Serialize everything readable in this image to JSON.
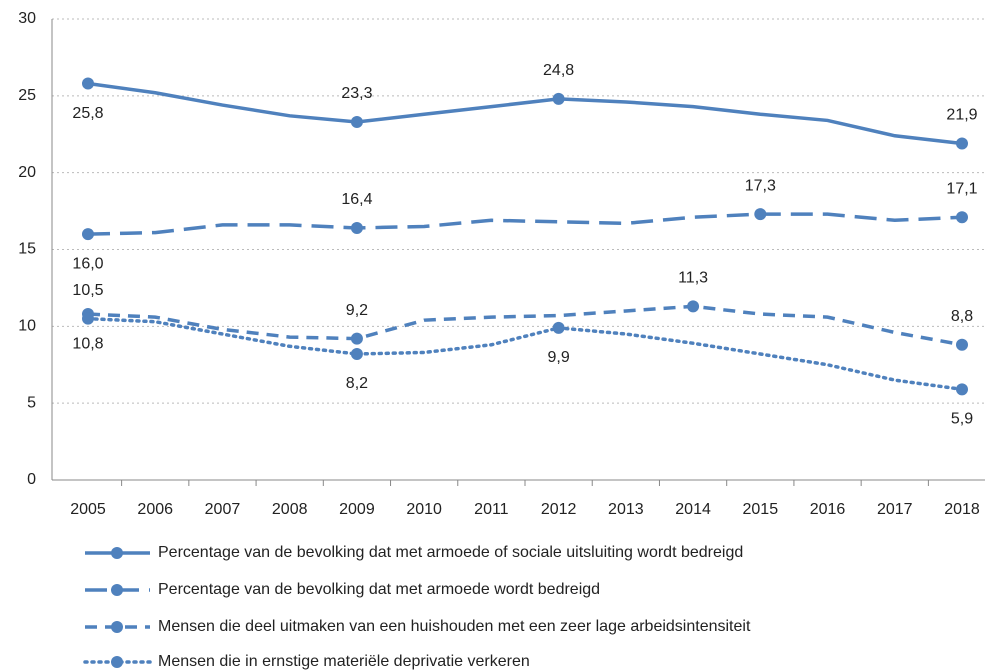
{
  "chart_data": {
    "type": "line",
    "categories": [
      "2005",
      "2006",
      "2007",
      "2008",
      "2009",
      "2010",
      "2011",
      "2012",
      "2013",
      "2014",
      "2015",
      "2016",
      "2017",
      "2018"
    ],
    "ylim": [
      0,
      30
    ],
    "yticks": [
      0,
      5,
      10,
      15,
      20,
      25,
      30
    ],
    "grid": true,
    "series": [
      {
        "name": "Percentage van de bevolking dat met armoede of sociale uitsluiting wordt bedreigd",
        "color": "#4f81bd",
        "dash": "solid",
        "values": [
          25.8,
          25.2,
          24.4,
          23.7,
          23.3,
          23.8,
          24.3,
          24.8,
          24.6,
          24.3,
          23.8,
          23.4,
          22.4,
          21.9
        ],
        "value_labels": [
          "25,8",
          null,
          null,
          null,
          "23,3",
          null,
          null,
          "24,8",
          null,
          null,
          null,
          null,
          null,
          "21,9"
        ]
      },
      {
        "name": "Percentage van de bevolking dat met armoede wordt bedreigd",
        "color": "#4f81bd",
        "dash": "long",
        "values": [
          16.0,
          16.1,
          16.6,
          16.6,
          16.4,
          16.5,
          16.9,
          16.8,
          16.7,
          17.1,
          17.3,
          17.3,
          16.9,
          17.1
        ],
        "value_labels": [
          "16,0",
          null,
          null,
          null,
          "16,4",
          null,
          null,
          null,
          null,
          null,
          "17,3",
          null,
          null,
          "17,1"
        ]
      },
      {
        "name": "Mensen die deel uitmaken van een huishouden met een zeer lage arbeidsintensiteit",
        "color": "#4f81bd",
        "dash": "medium",
        "values": [
          10.8,
          10.6,
          9.8,
          9.3,
          9.2,
          10.4,
          10.6,
          10.7,
          11.0,
          11.3,
          10.8,
          10.6,
          9.6,
          8.8
        ],
        "value_labels": [
          "10,8",
          null,
          null,
          null,
          "9,2",
          null,
          null,
          null,
          null,
          "11,3",
          null,
          null,
          null,
          "8,8"
        ]
      },
      {
        "name": "Mensen die in ernstige materiële deprivatie verkeren",
        "color": "#4f81bd",
        "dash": "dotted",
        "values": [
          10.5,
          10.3,
          9.5,
          8.7,
          8.2,
          8.3,
          8.8,
          9.9,
          9.5,
          8.9,
          8.2,
          7.5,
          6.5,
          5.9
        ],
        "value_labels": [
          "10,5",
          null,
          null,
          null,
          "8,2",
          null,
          null,
          "9,9",
          null,
          null,
          null,
          null,
          null,
          "5,9"
        ]
      }
    ]
  }
}
